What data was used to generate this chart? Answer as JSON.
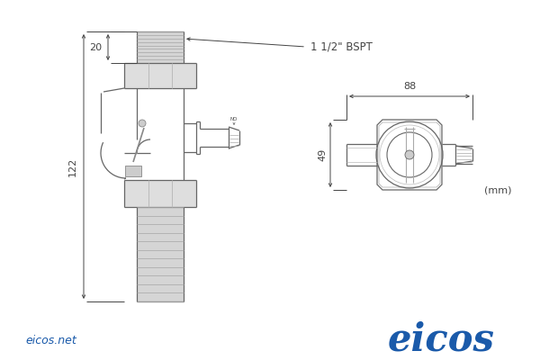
{
  "bg_color": "#ffffff",
  "line_color": "#666666",
  "dim_color": "#444444",
  "blue_color": "#1a5aaa",
  "label_20": "20",
  "label_122": "122",
  "label_88": "88",
  "label_49": "49",
  "label_bspt": "1 1/2\" BSPT",
  "label_mm": "(mm)",
  "label_website": "eicos.net",
  "label_brand": "eicos",
  "fig_width": 6.0,
  "fig_height": 4.0,
  "dpi": 100
}
